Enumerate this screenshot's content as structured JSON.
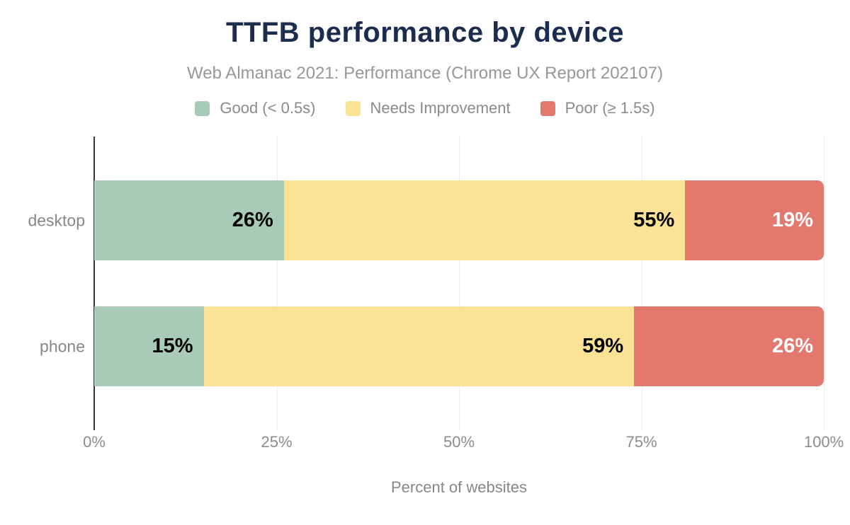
{
  "title": "TTFB performance by device",
  "subtitle": "Web Almanac 2021: Performance (Chrome UX Report 202107)",
  "legend": [
    {
      "label": "Good (< 0.5s)",
      "color": "#a8cbb7"
    },
    {
      "label": "Needs Improvement",
      "color": "#fbe295"
    },
    {
      "label": "Poor (≥ 1.5s)",
      "color": "#e3786e"
    }
  ],
  "chart_data": {
    "type": "bar",
    "orientation": "horizontal",
    "stacked": true,
    "title": "TTFB performance by device",
    "subtitle": "Web Almanac 2021: Performance (Chrome UX Report 202107)",
    "categories": [
      "desktop",
      "phone"
    ],
    "series": [
      {
        "name": "Good (< 0.5s)",
        "color": "#a8cbb7",
        "label_color": "#000000",
        "values": [
          26,
          15
        ]
      },
      {
        "name": "Needs Improvement",
        "color": "#fbe295",
        "label_color": "#000000",
        "values": [
          55,
          59
        ]
      },
      {
        "name": "Poor (≥ 1.5s)",
        "color": "#e3786e",
        "label_color": "#ffffff",
        "values": [
          19,
          26
        ]
      }
    ],
    "data_labels": [
      [
        "26%",
        "55%",
        "19%"
      ],
      [
        "15%",
        "59%",
        "26%"
      ]
    ],
    "xlim": [
      0,
      100
    ],
    "x_tick_values": [
      0,
      25,
      50,
      75,
      100
    ],
    "x_tick_labels": [
      "0%",
      "25%",
      "50%",
      "75%",
      "100%"
    ],
    "xlabel": "Percent of websites",
    "ylabel": "",
    "grid": "vertical",
    "legend_position": "top",
    "value_suffix": "%"
  },
  "colors": {
    "title": "#1b2c4e",
    "subtitle_text": "#94979b",
    "axis_text": "#8a8d90",
    "axis_line": "#333333",
    "gridline": "#ededed",
    "background": "#ffffff"
  }
}
